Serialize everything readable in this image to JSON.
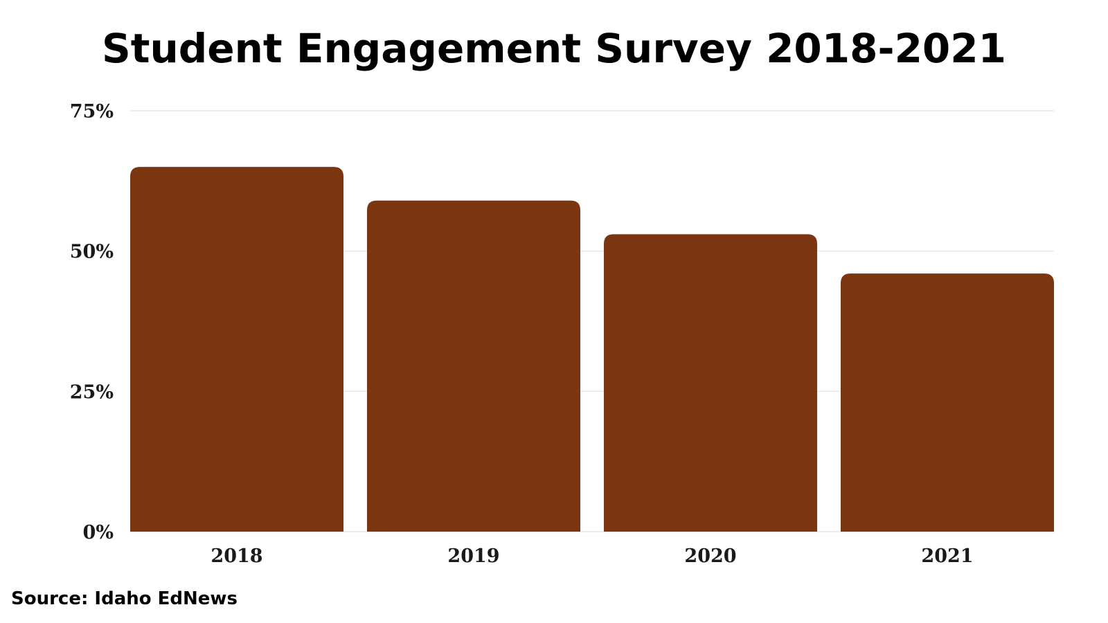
{
  "chart_data": {
    "type": "bar",
    "title": "Student Engagement Survey 2018-2021",
    "categories": [
      "2018",
      "2019",
      "2020",
      "2021"
    ],
    "values": [
      65,
      59,
      53,
      46
    ],
    "ylim": [
      0,
      75
    ],
    "yticks": [
      0,
      25,
      50,
      75
    ],
    "ytick_labels": [
      "0%",
      "25%",
      "50%",
      "75%"
    ],
    "xlabel": "",
    "ylabel": "",
    "grid": true,
    "bar_color": "#7B3510",
    "grid_color": "#e3e3e3"
  },
  "source": "Source: Idaho EdNews"
}
